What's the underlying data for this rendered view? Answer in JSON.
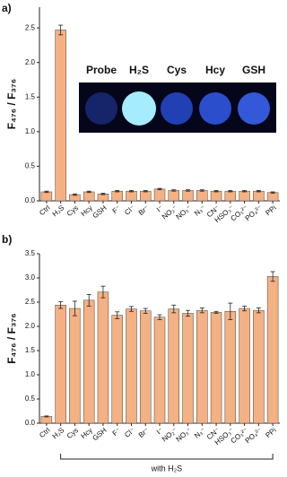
{
  "chart_data": [
    {
      "type": "bar",
      "panel_label": "a)",
      "ylabel": "F₄₇₆ / F₃₇₆",
      "categories": [
        "Ctrl",
        "H₂S",
        "Cys",
        "Hcy",
        "GSH",
        "F⁻",
        "Cl⁻",
        "Br⁻",
        "I⁻",
        "NO₂⁻",
        "NO₃⁻",
        "N₃⁻",
        "CN⁻",
        "HSO₃⁻",
        "CO₃²⁻",
        "PO₄³⁻",
        "PPi"
      ],
      "values": [
        0.13,
        2.47,
        0.09,
        0.13,
        0.1,
        0.14,
        0.14,
        0.14,
        0.17,
        0.15,
        0.15,
        0.15,
        0.14,
        0.14,
        0.14,
        0.14,
        0.12
      ],
      "errors": [
        0.01,
        0.07,
        0.01,
        0.01,
        0.01,
        0.01,
        0.01,
        0.01,
        0.01,
        0.01,
        0.01,
        0.01,
        0.01,
        0.01,
        0.01,
        0.01,
        0.01
      ],
      "color": "#f4b183",
      "ylim": [
        0,
        2.8
      ],
      "yticks": [
        {
          "value": 0,
          "label": "0.0"
        },
        0.5,
        {
          "value": 1,
          "label": "1.0"
        },
        1.5,
        {
          "value": 2,
          "label": "2.0"
        },
        2.5
      ],
      "inset_labels": [
        "Probe",
        "H₂S",
        "Cys",
        "Hcy",
        "GSH"
      ]
    },
    {
      "type": "bar",
      "panel_label": "b)",
      "ylabel": "F₄₇₆ / F₃₇₆",
      "categories": [
        "Ctrl",
        "H₂S",
        "Cys",
        "Hcy",
        "GSH",
        "F⁻",
        "Cl⁻",
        "Br⁻",
        "I⁻",
        "NO₂⁻",
        "NO₃⁻",
        "N₃⁻",
        "CN⁻",
        "HSO₃⁻",
        "CO₃²⁻",
        "PO₄³⁻",
        "PPi"
      ],
      "values": [
        0.14,
        2.44,
        2.37,
        2.54,
        2.71,
        2.23,
        2.36,
        2.32,
        2.19,
        2.36,
        2.27,
        2.33,
        2.29,
        2.31,
        2.37,
        2.33,
        3.03
      ],
      "errors": [
        0.01,
        0.07,
        0.15,
        0.12,
        0.12,
        0.07,
        0.05,
        0.05,
        0.05,
        0.08,
        0.06,
        0.05,
        0.02,
        0.17,
        0.05,
        0.05,
        0.1
      ],
      "color": "#f4b183",
      "ylim": [
        0,
        3.5
      ],
      "yticks": [
        {
          "value": 0,
          "label": "0.0"
        },
        0.5,
        {
          "value": 1,
          "label": "1.0"
        },
        1.5,
        {
          "value": 2,
          "label": "2.0"
        },
        2.5,
        {
          "value": 3,
          "label": "3.0"
        },
        3.5
      ],
      "annotation": "with H₂S"
    }
  ]
}
